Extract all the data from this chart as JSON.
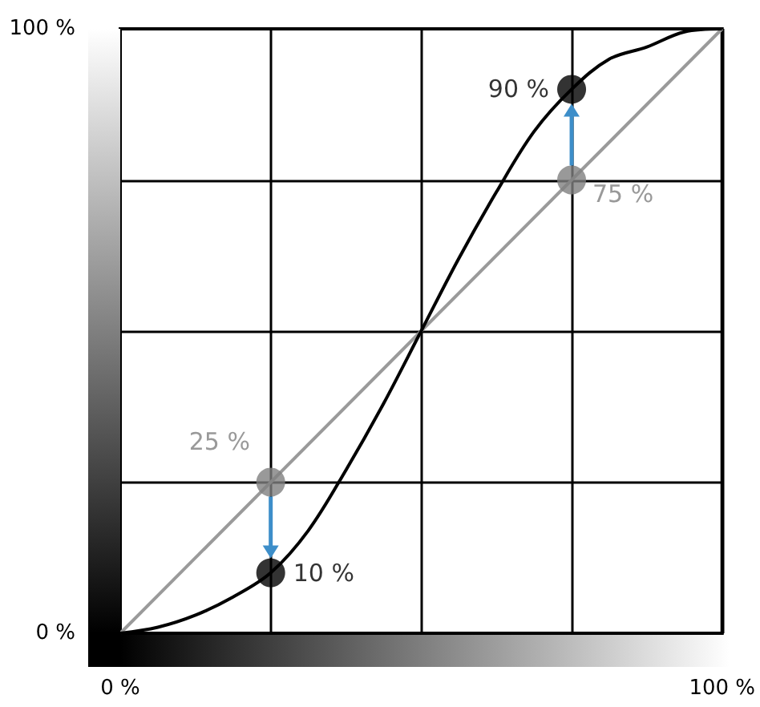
{
  "chart_data": {
    "type": "line",
    "xlim": [
      0,
      100
    ],
    "ylim": [
      0,
      100
    ],
    "xticks": [
      {
        "value": 0,
        "label": "0 %"
      },
      {
        "value": 25,
        "label": null
      },
      {
        "value": 50,
        "label": null
      },
      {
        "value": 75,
        "label": null
      },
      {
        "value": 100,
        "label": "100 %"
      }
    ],
    "yticks": [
      {
        "value": 0,
        "label": "0 %"
      },
      {
        "value": 25,
        "label": null
      },
      {
        "value": 50,
        "label": null
      },
      {
        "value": 75,
        "label": null
      },
      {
        "value": 100,
        "label": "100 %"
      }
    ],
    "grid": true,
    "series": [
      {
        "color": "#9a9a9a",
        "marker": "none",
        "x": [
          0,
          100
        ],
        "values": [
          0,
          100
        ]
      },
      {
        "color": "#000000",
        "marker": "none",
        "x": [
          0,
          6.25,
          12.5,
          18.75,
          25,
          31.25,
          37.5,
          43.75,
          50,
          56.25,
          62.5,
          68.75,
          75,
          81.25,
          87.5,
          93.75,
          100
        ],
        "values": [
          0,
          1,
          3,
          6,
          10,
          17,
          27,
          38,
          50,
          62,
          73,
          83,
          90,
          95,
          97,
          99.5,
          100
        ]
      },
      {
        "type": "scatter",
        "color": "#808080",
        "marker": "circle",
        "x": [
          25,
          75
        ],
        "values": [
          25,
          75
        ],
        "value_labels": [
          "25 %",
          "75 %"
        ]
      },
      {
        "type": "scatter",
        "color": "#000000",
        "marker": "circle",
        "x": [
          25,
          75
        ],
        "values": [
          10,
          90
        ],
        "value_labels": [
          "10 %",
          "90 %"
        ]
      }
    ]
  }
}
